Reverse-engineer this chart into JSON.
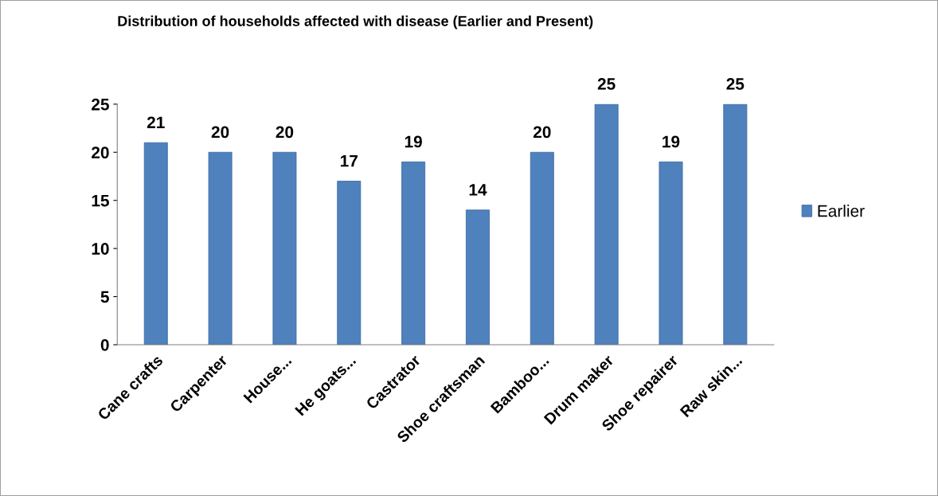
{
  "chart_data": {
    "type": "bar",
    "title": "Distribution of households affected with disease (Earlier and Present)",
    "categories": [
      "Cane crafts",
      "Carpenter",
      "House...",
      "He goats...",
      "Castrator",
      "Shoe craftsman",
      "Bamboo...",
      "Drum maker",
      "Shoe repairer",
      "Raw skin..."
    ],
    "series": [
      {
        "name": "Earlier",
        "color": "#4f81bd",
        "values": [
          21,
          20,
          20,
          17,
          19,
          14,
          20,
          25,
          19,
          25
        ]
      }
    ],
    "ylim": [
      0,
      25
    ],
    "yticks": [
      0,
      5,
      10,
      15,
      20,
      25
    ],
    "data_labels": true,
    "legend": "right",
    "grid": false
  }
}
